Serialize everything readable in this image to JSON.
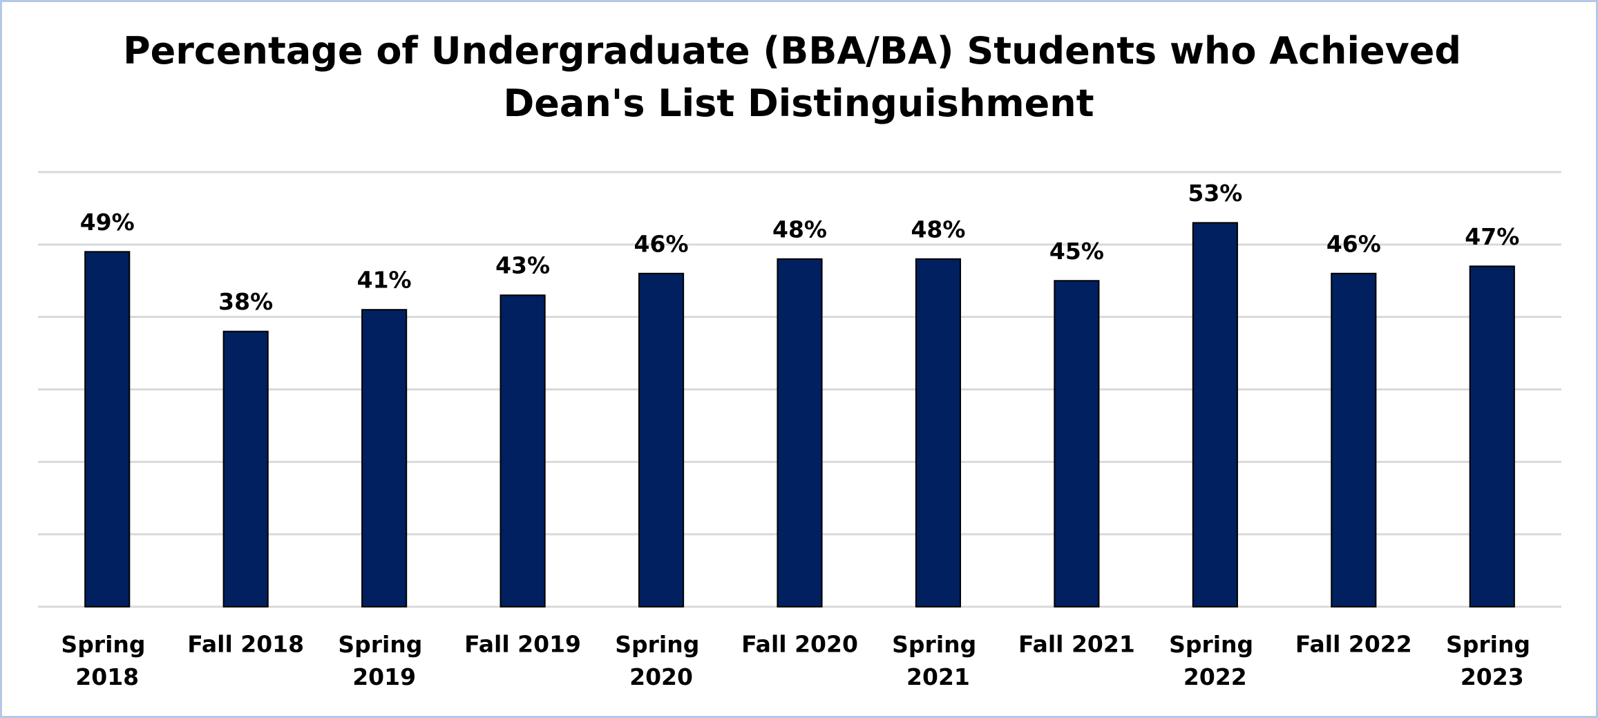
{
  "chart_data": {
    "type": "bar",
    "title": "Percentage of Undergraduate (BBA/BA) Students who Achieved Dean's List Distinguishment",
    "categories": [
      "Spring 2018",
      "Fall 2018",
      "Spring 2019",
      "Fall 2019",
      "Spring 2020",
      "Fall 2020",
      "Spring 2021",
      "Fall 2021",
      "Spring 2022",
      "Fall 2022",
      "Spring 2023"
    ],
    "values": [
      49,
      38,
      41,
      43,
      46,
      48,
      48,
      45,
      53,
      46,
      47
    ],
    "value_labels": [
      "49%",
      "38%",
      "41%",
      "43%",
      "46%",
      "48%",
      "48%",
      "45%",
      "53%",
      "46%",
      "47%"
    ],
    "color": "#002060",
    "ylim": [
      0,
      60
    ],
    "yticks": [
      0,
      10,
      20,
      30,
      40,
      50,
      60
    ],
    "grid": true
  }
}
